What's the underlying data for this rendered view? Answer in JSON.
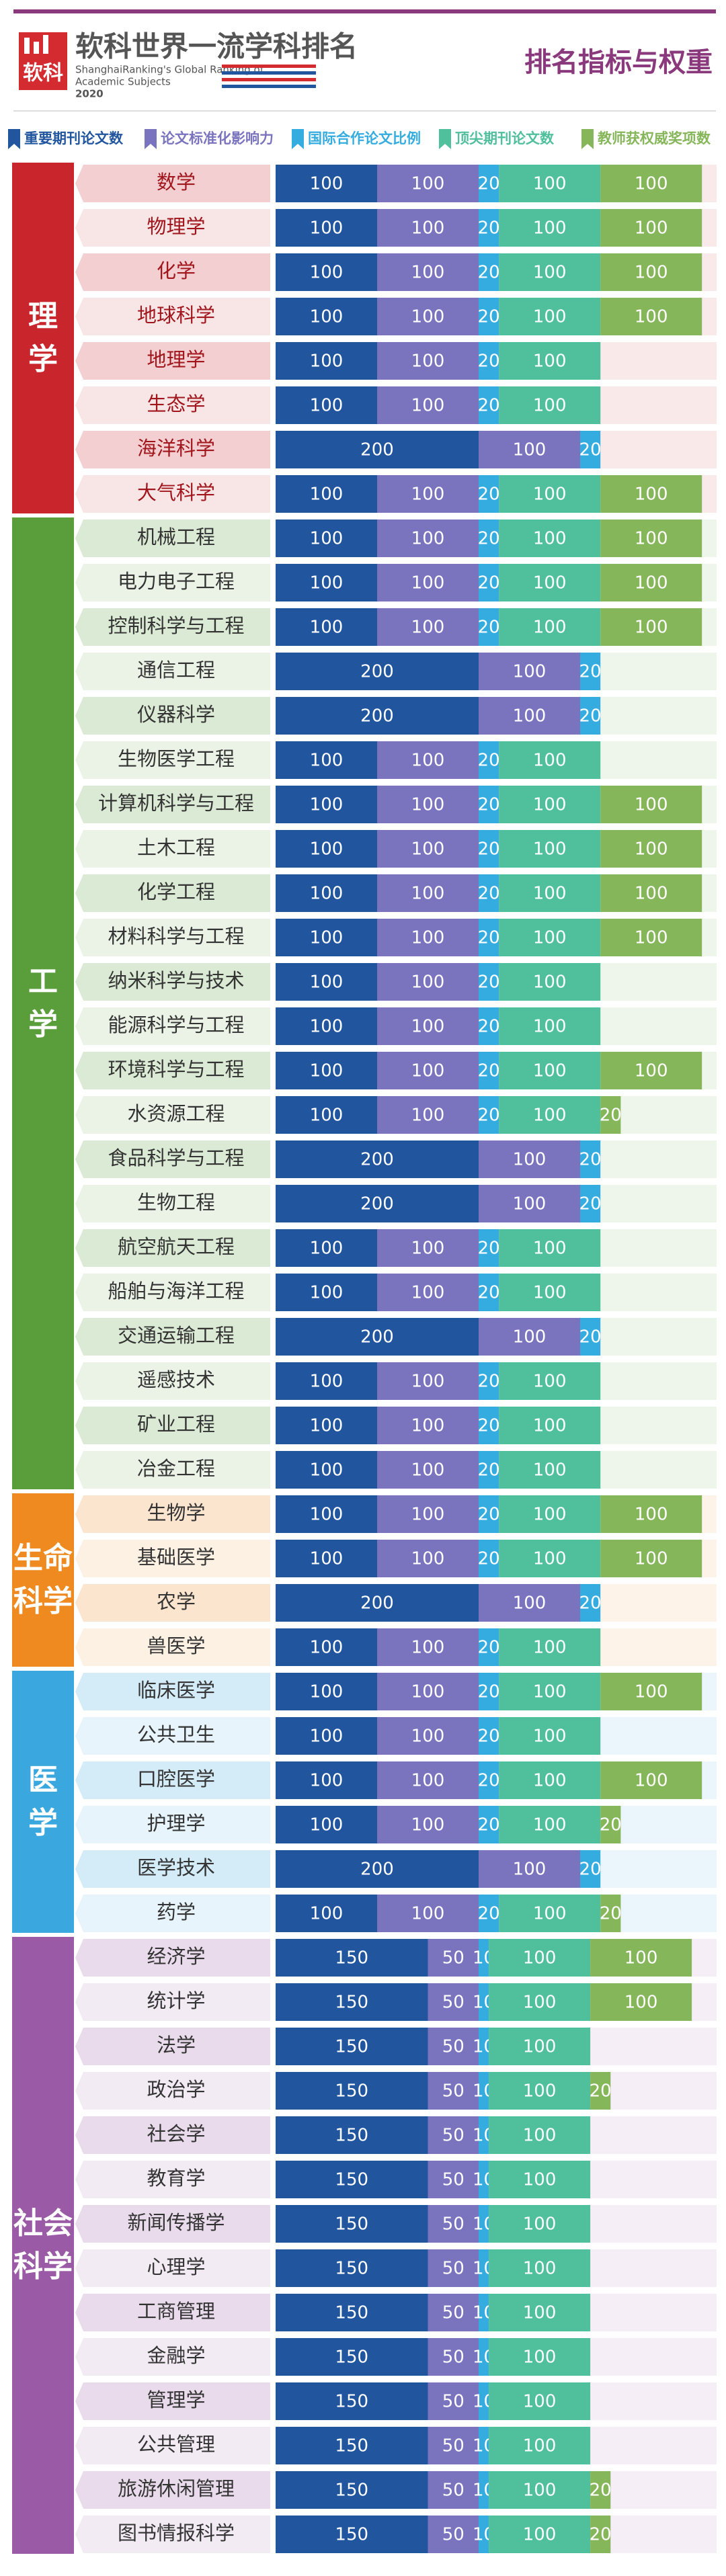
{
  "header": {
    "logo": "软科",
    "title": "软科世界一流学科排名",
    "subtitle_lines": [
      "ShanghaiRanking's Global Ranking of",
      "Academic Subjects"
    ],
    "year": "2020",
    "right_title": "排名指标与权重"
  },
  "legend": [
    {
      "label": "重要期刊论文数",
      "color": "#21569e"
    },
    {
      "label": "论文标准化影响力",
      "color": "#7a74bf"
    },
    {
      "label": "国际合作论文比例",
      "color": "#35ace0"
    },
    {
      "label": "顶尖期刊论文数",
      "color": "#4fbf9c"
    },
    {
      "label": "教师获权威奖项数",
      "color": "#86b65a"
    }
  ],
  "groups": [
    {
      "name": "理学",
      "color": "#c8262c",
      "rows": [
        {
          "label": "数学",
          "values": [
            100,
            100,
            20,
            100,
            100
          ]
        },
        {
          "label": "物理学",
          "values": [
            100,
            100,
            20,
            100,
            100
          ]
        },
        {
          "label": "化学",
          "values": [
            100,
            100,
            20,
            100,
            100
          ]
        },
        {
          "label": "地球科学",
          "values": [
            100,
            100,
            20,
            100,
            100
          ]
        },
        {
          "label": "地理学",
          "values": [
            100,
            100,
            20,
            100,
            null
          ]
        },
        {
          "label": "生态学",
          "values": [
            100,
            100,
            20,
            100,
            null
          ]
        },
        {
          "label": "海洋科学",
          "values": [
            200,
            100,
            20,
            null,
            null
          ]
        },
        {
          "label": "大气科学",
          "values": [
            100,
            100,
            20,
            100,
            100
          ]
        }
      ]
    },
    {
      "name": "工学",
      "color": "#5a9e3c",
      "rows": [
        {
          "label": "机械工程",
          "values": [
            100,
            100,
            20,
            100,
            100
          ]
        },
        {
          "label": "电力电子工程",
          "values": [
            100,
            100,
            20,
            100,
            100
          ]
        },
        {
          "label": "控制科学与工程",
          "values": [
            100,
            100,
            20,
            100,
            100
          ]
        },
        {
          "label": "通信工程",
          "values": [
            200,
            100,
            20,
            null,
            null
          ]
        },
        {
          "label": "仪器科学",
          "values": [
            200,
            100,
            20,
            null,
            null
          ]
        },
        {
          "label": "生物医学工程",
          "values": [
            100,
            100,
            20,
            100,
            null
          ]
        },
        {
          "label": "计算机科学与工程",
          "values": [
            100,
            100,
            20,
            100,
            100
          ]
        },
        {
          "label": "土木工程",
          "values": [
            100,
            100,
            20,
            100,
            100
          ]
        },
        {
          "label": "化学工程",
          "values": [
            100,
            100,
            20,
            100,
            100
          ]
        },
        {
          "label": "材料科学与工程",
          "values": [
            100,
            100,
            20,
            100,
            100
          ]
        },
        {
          "label": "纳米科学与技术",
          "values": [
            100,
            100,
            20,
            100,
            null
          ]
        },
        {
          "label": "能源科学与工程",
          "values": [
            100,
            100,
            20,
            100,
            null
          ]
        },
        {
          "label": "环境科学与工程",
          "values": [
            100,
            100,
            20,
            100,
            100
          ]
        },
        {
          "label": "水资源工程",
          "values": [
            100,
            100,
            20,
            100,
            20
          ]
        },
        {
          "label": "食品科学与工程",
          "values": [
            200,
            100,
            20,
            null,
            null
          ]
        },
        {
          "label": "生物工程",
          "values": [
            200,
            100,
            20,
            null,
            null
          ]
        },
        {
          "label": "航空航天工程",
          "values": [
            100,
            100,
            20,
            100,
            null
          ]
        },
        {
          "label": "船舶与海洋工程",
          "values": [
            100,
            100,
            20,
            100,
            null
          ]
        },
        {
          "label": "交通运输工程",
          "values": [
            200,
            100,
            20,
            null,
            null
          ]
        },
        {
          "label": "遥感技术",
          "values": [
            100,
            100,
            20,
            100,
            null
          ]
        },
        {
          "label": "矿业工程",
          "values": [
            100,
            100,
            20,
            100,
            null
          ]
        },
        {
          "label": "冶金工程",
          "values": [
            100,
            100,
            20,
            100,
            null
          ]
        }
      ]
    },
    {
      "name": "生命科学",
      "color": "#ef8a20",
      "rows": [
        {
          "label": "生物学",
          "values": [
            100,
            100,
            20,
            100,
            100
          ]
        },
        {
          "label": "基础医学",
          "values": [
            100,
            100,
            20,
            100,
            100
          ]
        },
        {
          "label": "农学",
          "values": [
            200,
            100,
            20,
            null,
            null
          ]
        },
        {
          "label": "兽医学",
          "values": [
            100,
            100,
            20,
            100,
            null
          ]
        }
      ]
    },
    {
      "name": "医学",
      "color": "#3aa8de",
      "rows": [
        {
          "label": "临床医学",
          "values": [
            100,
            100,
            20,
            100,
            100
          ]
        },
        {
          "label": "公共卫生",
          "values": [
            100,
            100,
            20,
            100,
            null
          ]
        },
        {
          "label": "口腔医学",
          "values": [
            100,
            100,
            20,
            100,
            100
          ]
        },
        {
          "label": "护理学",
          "values": [
            100,
            100,
            20,
            100,
            20
          ]
        },
        {
          "label": "医学技术",
          "values": [
            200,
            100,
            20,
            null,
            null
          ]
        },
        {
          "label": "药学",
          "values": [
            100,
            100,
            20,
            100,
            20
          ]
        }
      ]
    },
    {
      "name": "社会科学",
      "color": "#9b5aa6",
      "rows": [
        {
          "label": "经济学",
          "values": [
            150,
            50,
            10,
            100,
            100
          ]
        },
        {
          "label": "统计学",
          "values": [
            150,
            50,
            10,
            100,
            100
          ]
        },
        {
          "label": "法学",
          "values": [
            150,
            50,
            10,
            100,
            null
          ]
        },
        {
          "label": "政治学",
          "values": [
            150,
            50,
            10,
            100,
            20
          ]
        },
        {
          "label": "社会学",
          "values": [
            150,
            50,
            10,
            100,
            null
          ]
        },
        {
          "label": "教育学",
          "values": [
            150,
            50,
            10,
            100,
            null
          ]
        },
        {
          "label": "新闻传播学",
          "values": [
            150,
            50,
            10,
            100,
            null
          ]
        },
        {
          "label": "心理学",
          "values": [
            150,
            50,
            10,
            100,
            null
          ]
        },
        {
          "label": "工商管理",
          "values": [
            150,
            50,
            10,
            100,
            null
          ]
        },
        {
          "label": "金融学",
          "values": [
            150,
            50,
            10,
            100,
            null
          ]
        },
        {
          "label": "管理学",
          "values": [
            150,
            50,
            10,
            100,
            null
          ]
        },
        {
          "label": "公共管理",
          "values": [
            150,
            50,
            10,
            100,
            null
          ]
        },
        {
          "label": "旅游休闲管理",
          "values": [
            150,
            50,
            10,
            100,
            20
          ]
        },
        {
          "label": "图书情报科学",
          "values": [
            150,
            50,
            10,
            100,
            20
          ]
        }
      ]
    }
  ]
}
